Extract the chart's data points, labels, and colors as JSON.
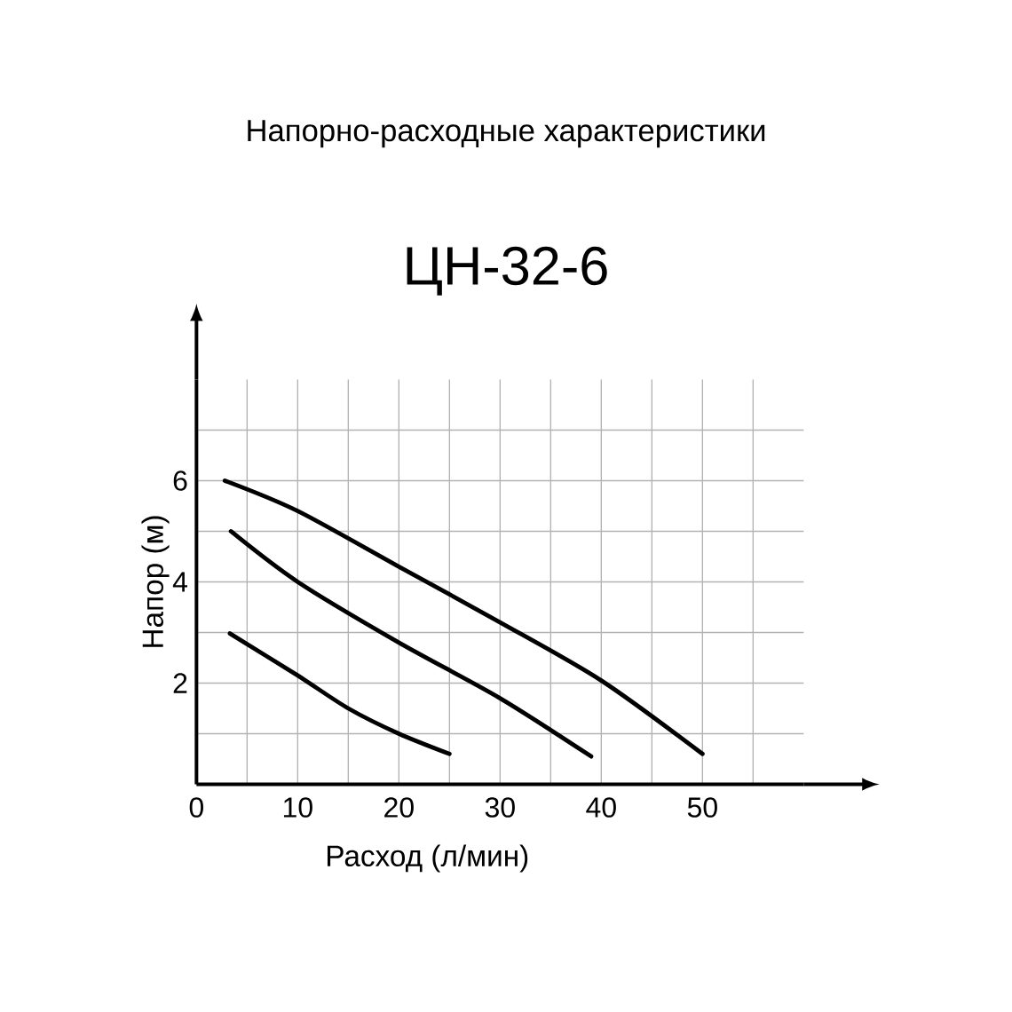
{
  "chart_data": {
    "type": "line",
    "title": "Напорно-расходные характеристики",
    "subtitle": "ЦН-32-6",
    "xlabel": "Расход (л/мин)",
    "ylabel": "Напор (м)",
    "series": [
      {
        "color": "#000000",
        "x": [
          2.8,
          10,
          20,
          30,
          40,
          50
        ],
        "values": [
          6.0,
          5.4,
          4.3,
          3.2,
          2.05,
          0.6
        ]
      },
      {
        "color": "#000000",
        "x": [
          3.4,
          10,
          20,
          30,
          39
        ],
        "values": [
          5.0,
          4.0,
          2.8,
          1.7,
          0.55
        ]
      },
      {
        "color": "#000000",
        "x": [
          3.3,
          10,
          15,
          20,
          25
        ],
        "values": [
          2.98,
          2.15,
          1.5,
          1.0,
          0.6
        ]
      }
    ],
    "xlim": [
      0,
      60
    ],
    "ylim": [
      0,
      8
    ],
    "xticks": [
      0,
      {
        "value": 5,
        "label": null
      },
      10,
      {
        "value": 15,
        "label": null
      },
      20,
      {
        "value": 25,
        "label": null
      },
      30,
      {
        "value": 35,
        "label": null
      },
      40,
      {
        "value": 45,
        "label": null
      },
      50,
      {
        "value": 55,
        "label": null
      }
    ],
    "yticks": [
      {
        "value": 1,
        "label": null
      },
      2,
      {
        "value": 3,
        "label": null
      },
      4,
      {
        "value": 5,
        "label": null
      },
      6,
      {
        "value": 7,
        "label": null
      }
    ],
    "grid": true,
    "marker": "none",
    "line_style": "solid"
  }
}
